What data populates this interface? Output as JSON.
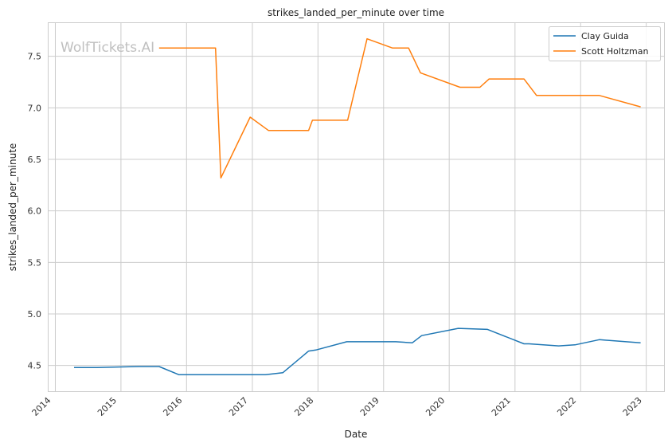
{
  "chart_data": {
    "type": "line",
    "title": "strikes_landed_per_minute over time",
    "xlabel": "Date",
    "ylabel": "strikes_landed_per_minute",
    "watermark": "WolfTickets.AI",
    "xlim": [
      "2013-11-20",
      "2023-04-10"
    ],
    "ylim": [
      4.25,
      7.83
    ],
    "x_ticks": [
      "2014",
      "2015",
      "2016",
      "2017",
      "2018",
      "2019",
      "2020",
      "2021",
      "2022",
      "2023"
    ],
    "y_ticks": [
      4.5,
      5.0,
      5.5,
      6.0,
      6.5,
      7.0,
      7.5
    ],
    "grid": true,
    "legend": "top-right",
    "series": [
      {
        "name": "Clay Guida",
        "color": "#1f77b4",
        "points": [
          [
            "2014-04-15",
            4.48
          ],
          [
            "2014-08-20",
            4.48
          ],
          [
            "2015-04-10",
            4.49
          ],
          [
            "2015-08-01",
            4.49
          ],
          [
            "2015-11-20",
            4.41
          ],
          [
            "2016-06-10",
            4.41
          ],
          [
            "2017-03-15",
            4.41
          ],
          [
            "2017-06-20",
            4.43
          ],
          [
            "2017-11-10",
            4.64
          ],
          [
            "2017-12-20",
            4.65
          ],
          [
            "2018-06-10",
            4.73
          ],
          [
            "2019-03-10",
            4.73
          ],
          [
            "2019-06-10",
            4.72
          ],
          [
            "2019-08-01",
            4.79
          ],
          [
            "2020-02-20",
            4.86
          ],
          [
            "2020-08-01",
            4.85
          ],
          [
            "2021-02-20",
            4.71
          ],
          [
            "2021-03-20",
            4.71
          ],
          [
            "2021-09-01",
            4.69
          ],
          [
            "2021-12-01",
            4.7
          ],
          [
            "2022-04-15",
            4.75
          ],
          [
            "2022-12-01",
            4.72
          ]
        ]
      },
      {
        "name": "Scott Holtzman",
        "color": "#ff7f0e",
        "points": [
          [
            "2015-08-01",
            7.58
          ],
          [
            "2016-06-10",
            7.58
          ],
          [
            "2016-07-10",
            6.32
          ],
          [
            "2016-12-20",
            6.91
          ],
          [
            "2017-04-01",
            6.78
          ],
          [
            "2017-11-10",
            6.78
          ],
          [
            "2017-12-01",
            6.88
          ],
          [
            "2018-06-15",
            6.88
          ],
          [
            "2018-10-01",
            7.67
          ],
          [
            "2019-02-20",
            7.58
          ],
          [
            "2019-05-20",
            7.58
          ],
          [
            "2019-07-25",
            7.34
          ],
          [
            "2020-03-01",
            7.2
          ],
          [
            "2020-06-20",
            7.2
          ],
          [
            "2020-08-10",
            7.28
          ],
          [
            "2021-02-20",
            7.28
          ],
          [
            "2021-05-01",
            7.12
          ],
          [
            "2022-04-15",
            7.12
          ],
          [
            "2022-12-01",
            7.01
          ]
        ]
      }
    ]
  }
}
